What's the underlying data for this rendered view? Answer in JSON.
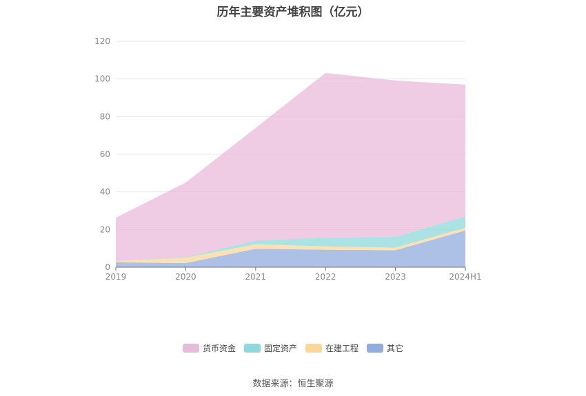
{
  "chart_data": {
    "type": "area",
    "stacked": true,
    "title": "历年主要资产堆积图（亿元）",
    "categories": [
      "2019",
      "2020",
      "2021",
      "2022",
      "2023",
      "2024H1"
    ],
    "y_ticks": [
      "0",
      "20",
      "40",
      "60",
      "80",
      "100",
      "120"
    ],
    "ylim": [
      0,
      120
    ],
    "grid": true,
    "legend_position": "bottom",
    "series": [
      {
        "name": "其它",
        "color": "#91acdf",
        "values": [
          2.6,
          2.2,
          9.8,
          9.3,
          9.0,
          19.5
        ]
      },
      {
        "name": "在建工程",
        "color": "#fcd79a",
        "values": [
          0.6,
          2.8,
          2.4,
          1.8,
          1.4,
          1.5
        ]
      },
      {
        "name": "固定资产",
        "color": "#8fd8db",
        "values": [
          0.1,
          0.3,
          2.0,
          4.6,
          5.7,
          6.0
        ]
      },
      {
        "name": "货币资金",
        "color": "#e9bbdb",
        "values": [
          23.0,
          39.7,
          59.8,
          87.5,
          83.1,
          70.0
        ]
      }
    ],
    "legend_order": [
      "货币资金",
      "固定资产",
      "在建工程",
      "其它"
    ]
  },
  "footer": {
    "source": "数据来源：恒生聚源"
  }
}
